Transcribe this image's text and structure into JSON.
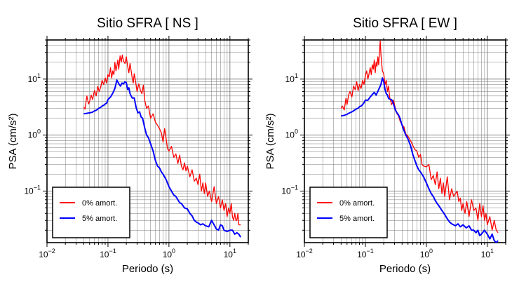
{
  "chart_data": [
    {
      "type": "line",
      "title": "Sitio SFRA [ NS ]",
      "xlabel": "Periodo (s)",
      "ylabel": "PSA (cm/s²)",
      "xscale": "log",
      "yscale": "log",
      "xlim": [
        0.01,
        20
      ],
      "ylim": [
        0.012,
        50
      ],
      "xticks": [
        {
          "v": 0.01,
          "label": "10",
          "exp": "−2"
        },
        {
          "v": 0.1,
          "label": "10",
          "exp": "−1"
        },
        {
          "v": 1,
          "label": "10",
          "exp": "0"
        },
        {
          "v": 10,
          "label": "10",
          "exp": "1"
        }
      ],
      "yticks": [
        {
          "v": 0.1,
          "label": "10",
          "exp": "−1"
        },
        {
          "v": 1,
          "label": "10",
          "exp": "0"
        },
        {
          "v": 10,
          "label": "10",
          "exp": "1"
        }
      ],
      "grid": true,
      "legend_position": "bottom-left",
      "series": [
        {
          "name": "0% amort.",
          "color": "#ff0000",
          "x": [
            0.04,
            0.042,
            0.045,
            0.048,
            0.05,
            0.053,
            0.056,
            0.06,
            0.064,
            0.068,
            0.072,
            0.076,
            0.08,
            0.085,
            0.09,
            0.095,
            0.1,
            0.105,
            0.11,
            0.115,
            0.12,
            0.125,
            0.13,
            0.135,
            0.14,
            0.145,
            0.15,
            0.158,
            0.165,
            0.172,
            0.18,
            0.19,
            0.2,
            0.21,
            0.22,
            0.23,
            0.24,
            0.25,
            0.26,
            0.27,
            0.28,
            0.3,
            0.32,
            0.34,
            0.36,
            0.38,
            0.4,
            0.43,
            0.46,
            0.5,
            0.55,
            0.6,
            0.65,
            0.7,
            0.75,
            0.8,
            0.85,
            0.9,
            0.95,
            1.0,
            1.1,
            1.2,
            1.3,
            1.4,
            1.5,
            1.6,
            1.7,
            1.8,
            1.9,
            2.0,
            2.2,
            2.4,
            2.6,
            2.8,
            3.0,
            3.2,
            3.4,
            3.6,
            3.8,
            4.0,
            4.3,
            4.6,
            5.0,
            5.5,
            6.0,
            6.5,
            7.0,
            7.5,
            8.0,
            8.5,
            9.0,
            9.5,
            10,
            10.5,
            11,
            11.5,
            12,
            12.5,
            13,
            13.5,
            14,
            15
          ],
          "y": [
            3.2,
            2.9,
            5.0,
            3.6,
            4.0,
            5.2,
            4.3,
            6.3,
            5.0,
            7.4,
            6.0,
            7.2,
            9.5,
            8.0,
            10.5,
            8.5,
            12,
            11,
            16,
            10.5,
            14,
            12,
            20,
            14,
            17,
            22,
            15,
            26,
            20,
            27,
            21,
            19,
            25,
            17,
            13,
            19,
            14,
            10.5,
            8.5,
            12.5,
            10,
            6.0,
            8.2,
            6.3,
            5.5,
            7.8,
            4.2,
            3.0,
            3.3,
            2.0,
            2.4,
            1.7,
            1.5,
            1.3,
            1.1,
            0.75,
            1.3,
            0.85,
            0.57,
            0.52,
            0.63,
            0.4,
            0.46,
            0.31,
            0.44,
            0.28,
            0.24,
            0.32,
            0.23,
            0.28,
            0.18,
            0.24,
            0.15,
            0.17,
            0.13,
            0.2,
            0.1,
            0.14,
            0.09,
            0.14,
            0.08,
            0.1,
            0.065,
            0.12,
            0.06,
            0.08,
            0.05,
            0.07,
            0.045,
            0.06,
            0.035,
            0.05,
            0.04,
            0.06,
            0.035,
            0.03,
            0.04,
            0.03,
            0.03,
            0.04,
            0.025,
            0.025
          ]
        },
        {
          "name": "5% amort.",
          "color": "#0000ff",
          "x": [
            0.04,
            0.045,
            0.05,
            0.055,
            0.06,
            0.065,
            0.07,
            0.075,
            0.08,
            0.085,
            0.09,
            0.095,
            0.1,
            0.11,
            0.12,
            0.13,
            0.14,
            0.15,
            0.16,
            0.17,
            0.18,
            0.19,
            0.2,
            0.21,
            0.22,
            0.23,
            0.24,
            0.25,
            0.27,
            0.29,
            0.31,
            0.33,
            0.35,
            0.37,
            0.4,
            0.43,
            0.46,
            0.5,
            0.55,
            0.6,
            0.65,
            0.7,
            0.75,
            0.8,
            0.9,
            1.0,
            1.1,
            1.2,
            1.3,
            1.4,
            1.5,
            1.6,
            1.8,
            2.0,
            2.2,
            2.4,
            2.6,
            2.8,
            3.0,
            3.3,
            3.6,
            4.0,
            4.5,
            5.0,
            5.5,
            6.0,
            6.5,
            7.0,
            7.5,
            8.0,
            9.0,
            10,
            11,
            12,
            13,
            14,
            15
          ],
          "y": [
            2.4,
            2.45,
            2.5,
            2.55,
            2.7,
            2.8,
            3.0,
            3.1,
            3.3,
            3.4,
            3.6,
            3.7,
            4.3,
            4.8,
            5.6,
            6.8,
            9.6,
            8.3,
            7.5,
            8.5,
            8.2,
            9.0,
            8.6,
            6.5,
            7.0,
            5.5,
            5.0,
            4.6,
            4.6,
            3.1,
            2.5,
            2.6,
            2.1,
            2.0,
            1.35,
            1.0,
            0.9,
            0.7,
            0.52,
            0.35,
            0.28,
            0.26,
            0.22,
            0.2,
            0.16,
            0.12,
            0.1,
            0.085,
            0.08,
            0.07,
            0.062,
            0.06,
            0.05,
            0.048,
            0.04,
            0.036,
            0.03,
            0.028,
            0.027,
            0.025,
            0.026,
            0.024,
            0.023,
            0.03,
            0.025,
            0.021,
            0.02,
            0.025,
            0.024,
            0.02,
            0.019,
            0.02,
            0.02,
            0.017,
            0.018,
            0.017,
            0.015
          ]
        }
      ]
    },
    {
      "type": "line",
      "title": "Sitio SFRA [ EW ]",
      "xlabel": "Periodo (s)",
      "ylabel": "PSA (cm/s²)",
      "xscale": "log",
      "yscale": "log",
      "xlim": [
        0.01,
        20
      ],
      "ylim": [
        0.012,
        50
      ],
      "xticks": [
        {
          "v": 0.01,
          "label": "10",
          "exp": "−2"
        },
        {
          "v": 0.1,
          "label": "10",
          "exp": "−1"
        },
        {
          "v": 1,
          "label": "10",
          "exp": "0"
        },
        {
          "v": 10,
          "label": "10",
          "exp": "1"
        }
      ],
      "yticks": [
        {
          "v": 0.1,
          "label": "10",
          "exp": "−1"
        },
        {
          "v": 1,
          "label": "10",
          "exp": "0"
        },
        {
          "v": 10,
          "label": "10",
          "exp": "1"
        }
      ],
      "grid": true,
      "legend_position": "bottom-left",
      "series": [
        {
          "name": "0% amort.",
          "color": "#ff0000",
          "x": [
            0.04,
            0.042,
            0.045,
            0.048,
            0.05,
            0.053,
            0.056,
            0.06,
            0.064,
            0.068,
            0.072,
            0.076,
            0.08,
            0.085,
            0.09,
            0.095,
            0.1,
            0.105,
            0.11,
            0.115,
            0.12,
            0.125,
            0.13,
            0.135,
            0.14,
            0.145,
            0.15,
            0.155,
            0.16,
            0.165,
            0.17,
            0.175,
            0.18,
            0.185,
            0.19,
            0.2,
            0.21,
            0.22,
            0.23,
            0.24,
            0.25,
            0.27,
            0.29,
            0.31,
            0.33,
            0.35,
            0.37,
            0.4,
            0.43,
            0.46,
            0.5,
            0.55,
            0.6,
            0.65,
            0.7,
            0.75,
            0.8,
            0.85,
            0.9,
            1.0,
            1.1,
            1.2,
            1.3,
            1.4,
            1.5,
            1.6,
            1.7,
            1.8,
            1.9,
            2.0,
            2.2,
            2.4,
            2.6,
            2.8,
            3.0,
            3.2,
            3.4,
            3.6,
            3.8,
            4.0,
            4.3,
            4.6,
            5.0,
            5.5,
            6.0,
            6.5,
            7.0,
            7.5,
            8.0,
            8.5,
            9.0,
            9.5,
            10,
            11,
            12,
            13,
            14,
            15
          ],
          "y": [
            3.0,
            3.3,
            2.8,
            4.5,
            3.5,
            5.2,
            6.0,
            4.8,
            7.5,
            6.5,
            9.0,
            6.2,
            8.0,
            6.8,
            9.5,
            8.0,
            11.5,
            14,
            10,
            12.5,
            16,
            12,
            18,
            15,
            22,
            13,
            20,
            17,
            25,
            18,
            30,
            48,
            28,
            19,
            14,
            12.5,
            8,
            9.5,
            6,
            7.5,
            4.8,
            3.5,
            4.2,
            3,
            2.4,
            2.2,
            1.8,
            1.5,
            1.4,
            1.05,
            0.95,
            0.8,
            0.65,
            0.55,
            0.52,
            0.4,
            0.45,
            0.3,
            0.28,
            0.27,
            0.3,
            0.16,
            0.19,
            0.13,
            0.22,
            0.11,
            0.17,
            0.09,
            0.14,
            0.08,
            0.18,
            0.07,
            0.11,
            0.08,
            0.09,
            0.1,
            0.065,
            0.075,
            0.045,
            0.06,
            0.04,
            0.065,
            0.035,
            0.07,
            0.045,
            0.05,
            0.03,
            0.06,
            0.035,
            0.055,
            0.03,
            0.04,
            0.025,
            0.035,
            0.02,
            0.03,
            0.02,
            0.018
          ]
        },
        {
          "name": "5% amort.",
          "color": "#0000ff",
          "x": [
            0.04,
            0.045,
            0.05,
            0.055,
            0.06,
            0.065,
            0.07,
            0.075,
            0.08,
            0.085,
            0.09,
            0.095,
            0.1,
            0.11,
            0.12,
            0.13,
            0.14,
            0.15,
            0.16,
            0.17,
            0.18,
            0.19,
            0.2,
            0.21,
            0.22,
            0.23,
            0.24,
            0.25,
            0.27,
            0.29,
            0.31,
            0.33,
            0.35,
            0.37,
            0.4,
            0.43,
            0.46,
            0.5,
            0.55,
            0.6,
            0.65,
            0.7,
            0.75,
            0.8,
            0.9,
            1.0,
            1.1,
            1.2,
            1.3,
            1.4,
            1.5,
            1.6,
            1.8,
            2.0,
            2.2,
            2.4,
            2.6,
            2.8,
            3.0,
            3.3,
            3.6,
            4.0,
            4.5,
            5.0,
            5.5,
            6.0,
            6.5,
            7.0,
            7.5,
            8.0,
            9.0,
            10,
            11,
            12,
            13,
            14,
            15
          ],
          "y": [
            2.2,
            2.25,
            2.35,
            2.5,
            2.6,
            2.75,
            2.9,
            3.0,
            3.2,
            3.3,
            3.5,
            3.8,
            4.2,
            4.2,
            4.8,
            5.3,
            5.8,
            5.2,
            6.0,
            7.0,
            8.0,
            10.5,
            9.0,
            6.5,
            5.5,
            5.2,
            4.5,
            4.4,
            4.3,
            3.6,
            2.8,
            2.5,
            2.3,
            2.0,
            1.5,
            1.2,
            1.0,
            0.85,
            0.65,
            0.45,
            0.35,
            0.28,
            0.24,
            0.22,
            0.18,
            0.14,
            0.11,
            0.09,
            0.08,
            0.068,
            0.06,
            0.055,
            0.045,
            0.038,
            0.032,
            0.028,
            0.026,
            0.025,
            0.024,
            0.026,
            0.023,
            0.025,
            0.022,
            0.024,
            0.02,
            0.02,
            0.018,
            0.02,
            0.016,
            0.017,
            0.02,
            0.017,
            0.014,
            0.017,
            0.013,
            0.012,
            0.013
          ]
        }
      ]
    }
  ]
}
